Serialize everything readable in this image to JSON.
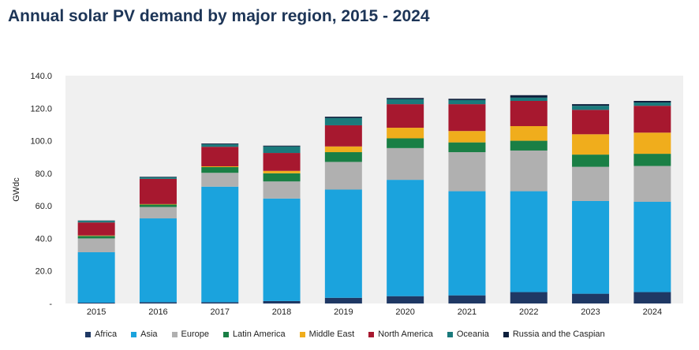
{
  "chart_data": {
    "type": "bar",
    "stacked": true,
    "title": "Annual solar PV demand by major region, 2015 - 2024",
    "ylabel": "GWdc",
    "xlabel": "",
    "ylim": [
      0,
      140
    ],
    "yticks": [
      "-",
      "20.0",
      "40.0",
      "60.0",
      "80.0",
      "100.0",
      "120.0",
      "140.0"
    ],
    "grid": false,
    "legend_position": "bottom",
    "categories": [
      "2015",
      "2016",
      "2017",
      "2018",
      "2019",
      "2020",
      "2021",
      "2022",
      "2023",
      "2024"
    ],
    "series": [
      {
        "name": "Africa",
        "color": "#1f3864",
        "values": [
          0.5,
          0.8,
          0.8,
          1.5,
          3.5,
          4.5,
          5.0,
          7.0,
          6.0,
          7.0
        ]
      },
      {
        "name": "Asia",
        "color": "#1ba3dd",
        "values": [
          31.0,
          51.5,
          71.0,
          63.0,
          66.5,
          71.5,
          64.0,
          62.0,
          57.0,
          55.5
        ]
      },
      {
        "name": "Europe",
        "color": "#b0b0b0",
        "values": [
          8.5,
          7.0,
          8.5,
          10.5,
          17.0,
          19.5,
          24.0,
          25.0,
          21.0,
          22.0
        ]
      },
      {
        "name": "Latin America",
        "color": "#1a7f45",
        "values": [
          1.5,
          1.5,
          3.5,
          5.0,
          6.0,
          6.0,
          6.0,
          6.0,
          7.5,
          7.5
        ]
      },
      {
        "name": "Middle East",
        "color": "#f0ad1c",
        "values": [
          0.3,
          0.3,
          0.5,
          1.5,
          3.5,
          6.5,
          7.0,
          9.0,
          12.5,
          13.0
        ]
      },
      {
        "name": "North America",
        "color": "#a7182f",
        "values": [
          8.0,
          15.5,
          12.0,
          11.0,
          13.0,
          14.5,
          16.5,
          15.5,
          15.0,
          16.5
        ]
      },
      {
        "name": "Oceania",
        "color": "#1a7a7c",
        "values": [
          1.0,
          1.0,
          1.5,
          4.0,
          4.5,
          3.0,
          2.5,
          2.0,
          2.5,
          2.0
        ]
      },
      {
        "name": "Russia and the Caspian",
        "color": "#0d1f3c",
        "values": [
          0.2,
          0.3,
          0.5,
          0.5,
          0.8,
          0.8,
          0.8,
          1.5,
          1.0,
          1.0
        ]
      }
    ]
  }
}
